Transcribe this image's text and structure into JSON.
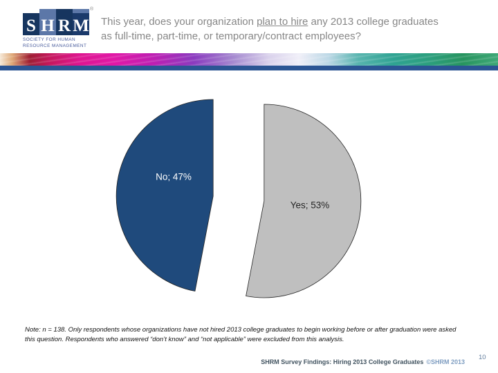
{
  "slide": {
    "logo": {
      "letters": [
        "S",
        "H",
        "R",
        "M"
      ],
      "registered": "®",
      "caption_line1": "SOCIETY FOR HUMAN",
      "caption_line2": "RESOURCE MANAGEMENT"
    },
    "title": {
      "pre": "This year, does your organization ",
      "underlined": "plan to hire",
      "post": " any 2013 college graduates as full-time, part-time, or temporary/contract employees?"
    },
    "note": {
      "line1": "Note: n = 138. Only respondents whose organizations have not hired 2013 college graduates to begin working before or after graduation were asked",
      "line2": "this question. Respondents who answered “don’t know” and “not applicable” were excluded from this analysis."
    },
    "footer": {
      "survey_title": "SHRM Survey Findings: Hiring 2013 College Graduates",
      "copyright": "©SHRM 2013",
      "page_number": "10"
    }
  },
  "chart_data": {
    "type": "pie",
    "question": "This year, does your organization plan to hire any 2013 college graduates as full-time, part-time, or temporary/contract employees?",
    "categories": [
      "Yes",
      "No"
    ],
    "values": [
      53,
      47
    ],
    "unit": "%",
    "n": 138,
    "start_angle_deg": 0,
    "clockwise": true,
    "exploded": true,
    "legend": "none",
    "slices": [
      {
        "name": "yes",
        "label": "Yes",
        "value": 53,
        "display": "Yes; 53%",
        "color": "#BFBFBF",
        "label_color": "#262626"
      },
      {
        "name": "no",
        "label": "No",
        "value": 47,
        "display": "No; 47%",
        "color": "#1F4A7C",
        "label_color": "#FFFFFF"
      }
    ]
  },
  "colors": {
    "header_bar": "#2B5594",
    "pie_yes": "#BFBFBF",
    "pie_no": "#1F4A7C",
    "title_text": "#878787",
    "footer_text": "#40525F",
    "footer_copyright": "#7D9CC0",
    "logo_dark_blue": "#16355F",
    "logo_medium_blue": "#5C77A8"
  }
}
